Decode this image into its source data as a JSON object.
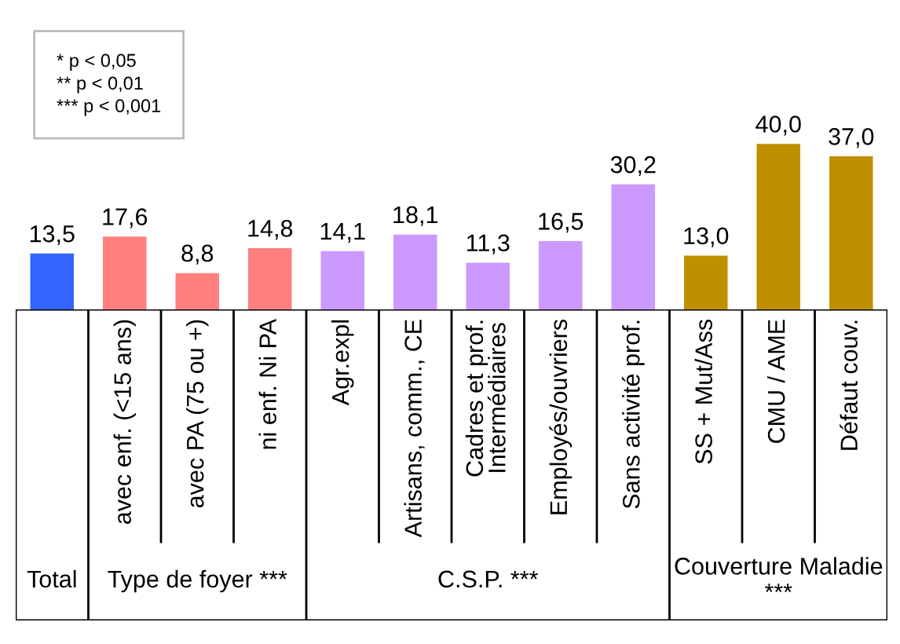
{
  "chart_data": {
    "type": "bar",
    "categories": [
      null,
      "avec enf. (<15 ans)",
      "avec PA (75 ou +)",
      "ni enf. Ni PA",
      "Agr.expl",
      "Artisans, comm., CE",
      "Cadres et prof.\nIntermédiaires",
      "Employés/ouvriers",
      "Sans activité prof.",
      "SS + Mut/Ass",
      "CMU / AME",
      "Défaut couv."
    ],
    "values": [
      13.5,
      17.6,
      8.8,
      14.8,
      14.1,
      18.1,
      11.3,
      16.5,
      30.2,
      13.0,
      40.0,
      37.0
    ],
    "value_labels": [
      "13,5",
      "17,6",
      "8,8",
      "14,8",
      "14,1",
      "18,1",
      "11,3",
      "16,5",
      "30,2",
      "13,0",
      "40,0",
      "37,0"
    ],
    "colors": [
      "#3366ff",
      "#ff7f7f",
      "#ff7f7f",
      "#ff7f7f",
      "#cc99ff",
      "#cc99ff",
      "#cc99ff",
      "#cc99ff",
      "#cc99ff",
      "#bf8f00",
      "#bf8f00",
      "#bf8f00"
    ],
    "annotations": [
      "* p < 0,05\n** p < 0,01\n*** p < 0,001",
      "Total",
      "Type de foyer ***",
      "C.S.P. ***",
      "Couverture Maladie\n***"
    ]
  }
}
